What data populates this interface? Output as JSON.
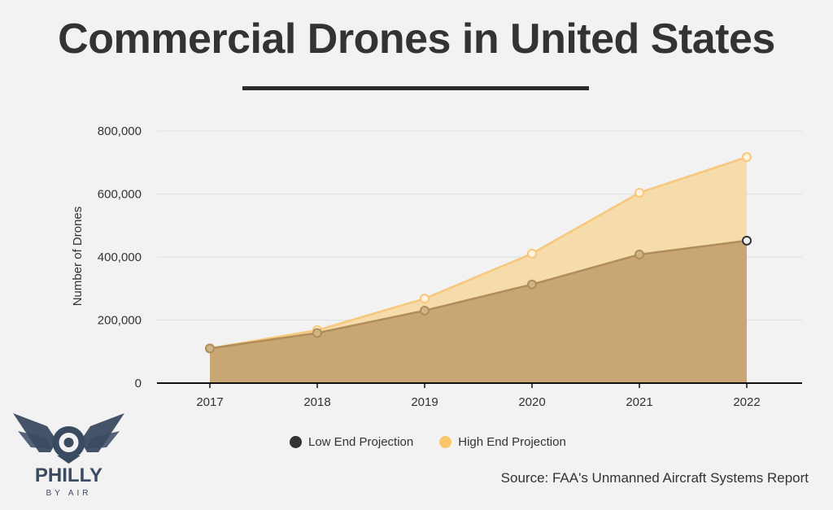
{
  "header": {
    "title": "Commercial Drones in United States"
  },
  "chart_data": {
    "type": "area",
    "title": "Commercial Drones in United States",
    "xlabel": "",
    "ylabel": "Number of Drones",
    "x": [
      "2017",
      "2018",
      "2019",
      "2020",
      "2021",
      "2022"
    ],
    "ylim": [
      0,
      800000
    ],
    "yticks": [
      0,
      200000,
      400000,
      600000,
      800000
    ],
    "ytick_labels": [
      "0",
      "200,000",
      "400,000",
      "600,000",
      "800,000"
    ],
    "grid": true,
    "legend_position": "bottom",
    "series": [
      {
        "name": "Low End Projection",
        "values": [
          110000,
          159000,
          230000,
          313000,
          408000,
          452000
        ],
        "color": "#333333",
        "fill": "#c8a774",
        "line": "#b08e5a"
      },
      {
        "name": "High End Projection",
        "values": [
          110000,
          168000,
          268000,
          411000,
          604000,
          717000
        ],
        "color": "#fbc66b",
        "fill": "#f6d8a3",
        "line": "#f7c77b"
      }
    ]
  },
  "legend": {
    "low_label": "Low End Projection",
    "high_label": "High End Projection"
  },
  "source": "Source: FAA's Unmanned Aircraft Systems Report",
  "logo": {
    "name": "PHILLY",
    "tagline": "BY AIR",
    "color": "#3a4a60"
  }
}
